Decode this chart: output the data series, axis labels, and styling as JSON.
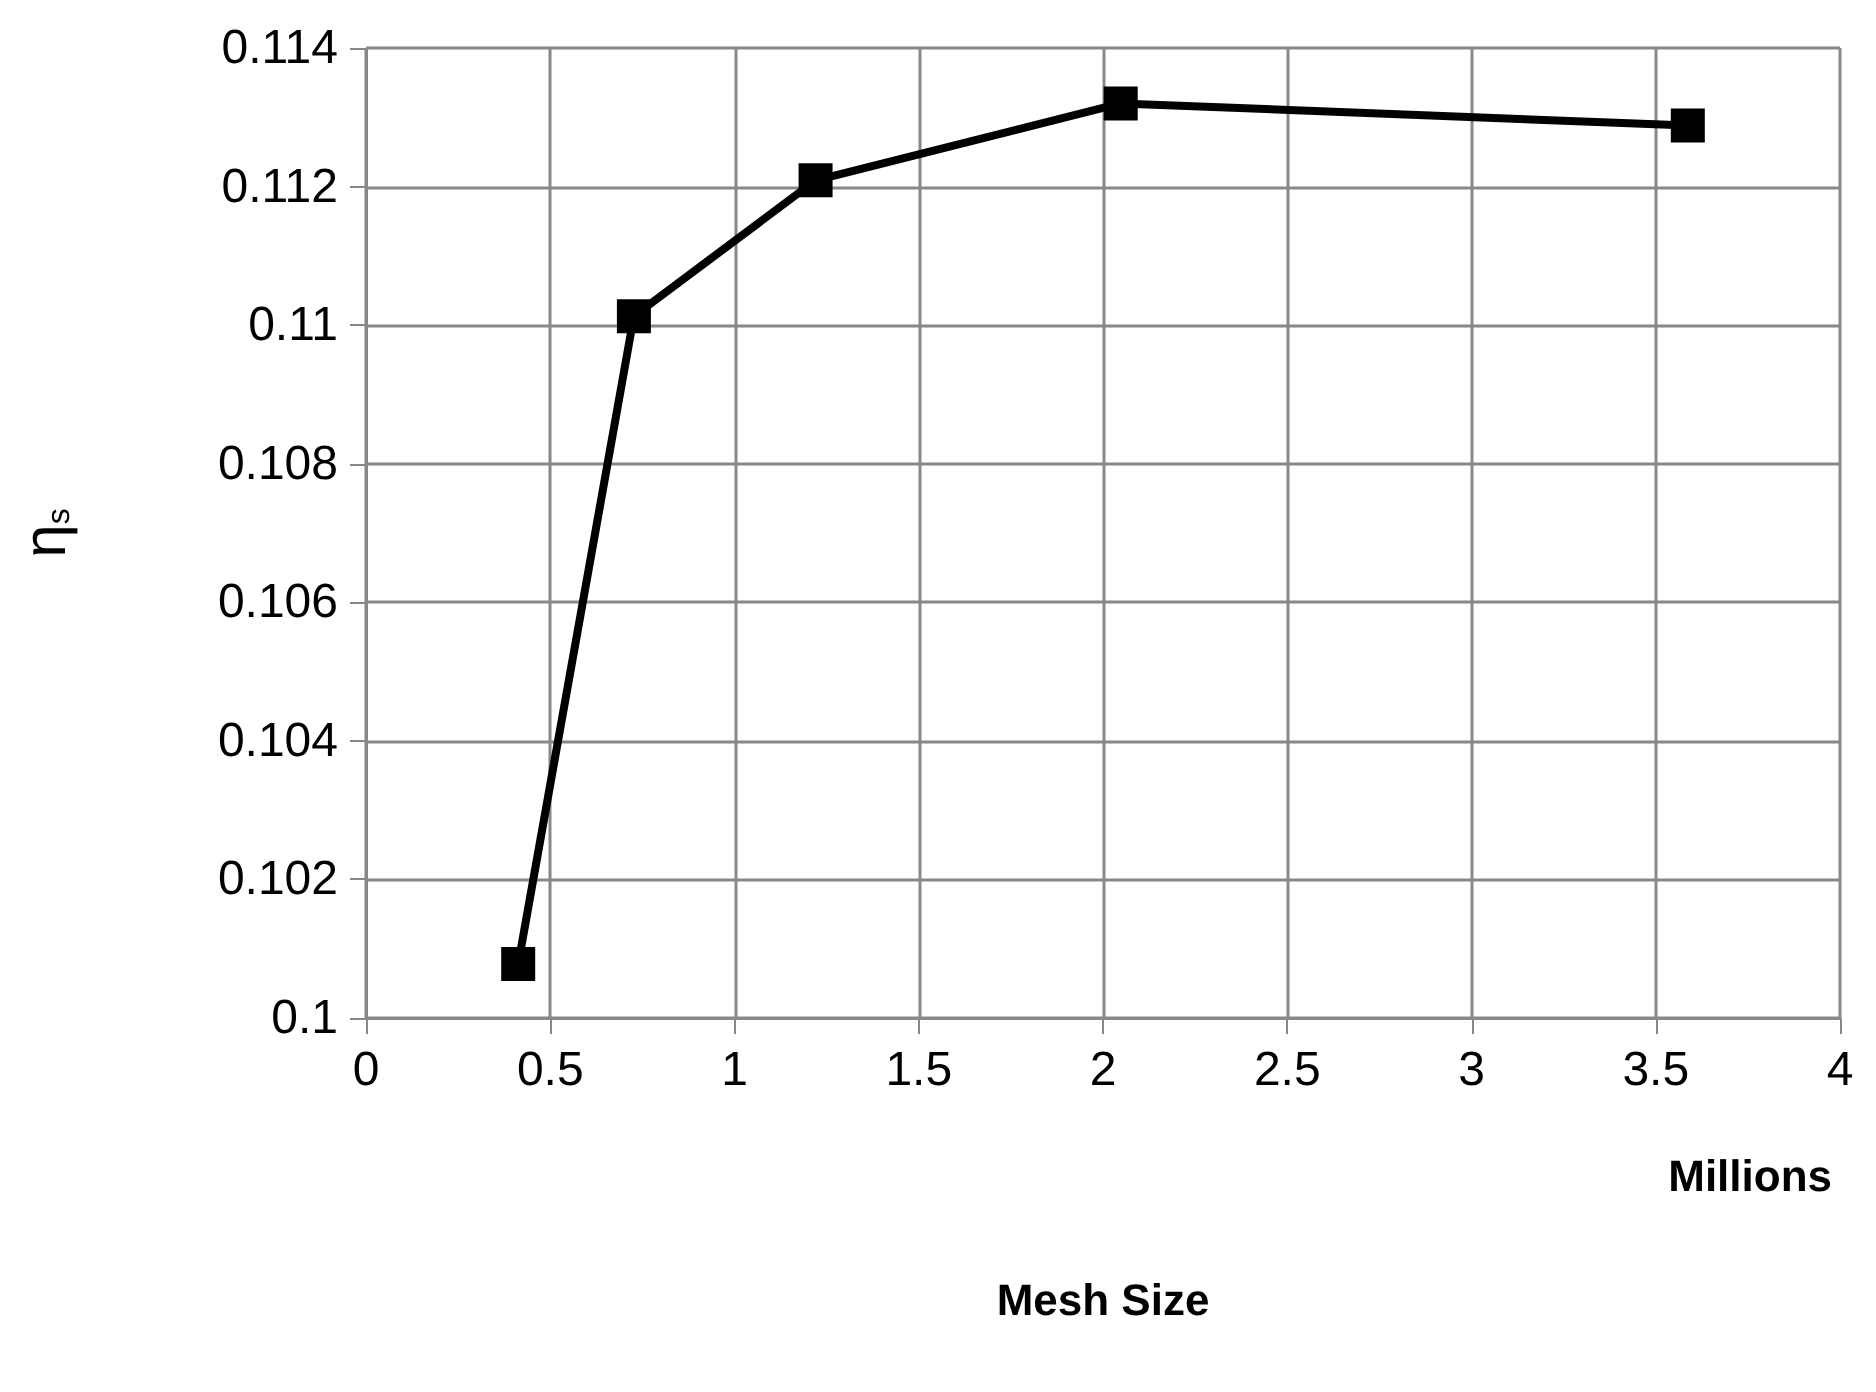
{
  "chart_data": {
    "type": "line",
    "xlabel": "Mesh Size",
    "ylabel": "η$_{s}$",
    "annotations": [
      "Millions"
    ],
    "x": [
      0.413,
      0.727,
      1.22,
      2.048,
      3.587
    ],
    "series": [
      {
        "color": "#000000",
        "values": [
          0.10078,
          0.11013,
          0.11209,
          0.1132,
          0.11288
        ]
      }
    ],
    "xlim": [
      0,
      4
    ],
    "xticks": [
      0,
      0.5,
      1,
      1.5,
      2,
      2.5,
      3,
      3.5,
      4
    ],
    "ylim": [
      0.1,
      0.114
    ],
    "yticks": [
      0.1,
      0.102,
      0.104,
      0.106,
      0.108,
      0.11,
      0.112,
      0.114
    ],
    "grid": true,
    "marker": "square",
    "line_style": "solid"
  }
}
